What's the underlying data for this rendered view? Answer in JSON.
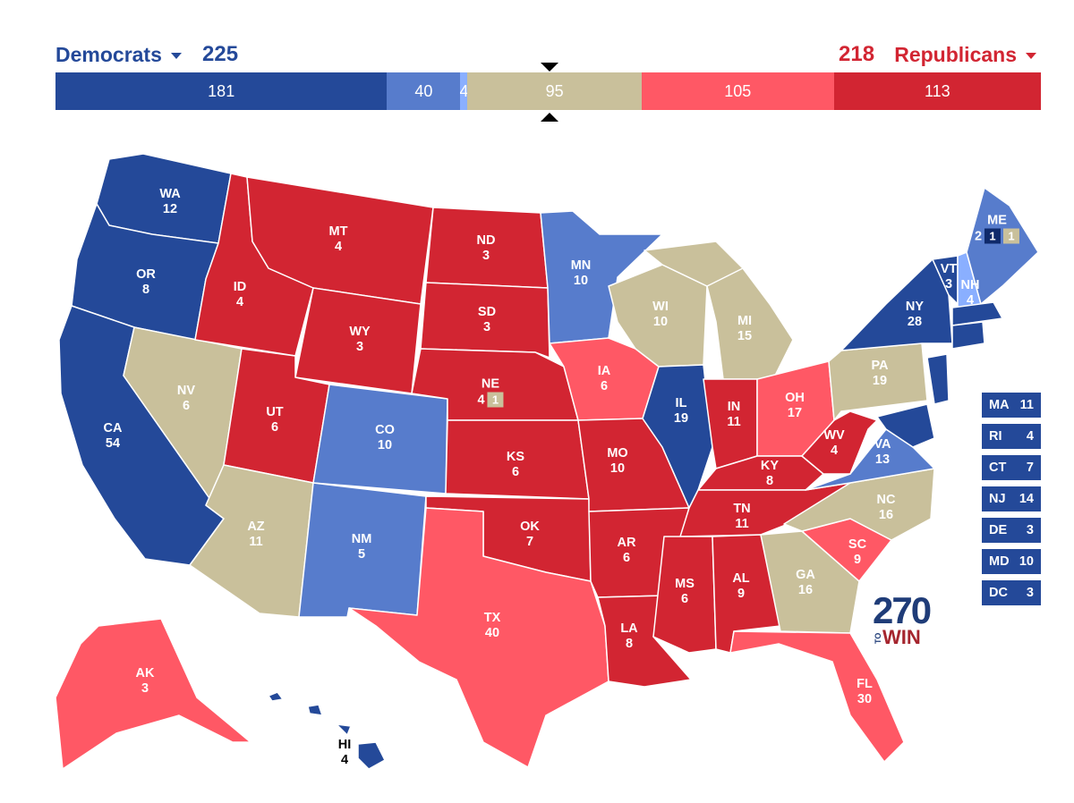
{
  "header": {
    "dem_label": "Democrats",
    "dem_total": "225",
    "rep_total": "218",
    "rep_label": "Republicans"
  },
  "bar": [
    {
      "id": "safe_dem",
      "label": "181",
      "value": 181,
      "color": "#244999"
    },
    {
      "id": "likely_dem",
      "label": "40",
      "value": 40,
      "color": "#577ccc"
    },
    {
      "id": "lean_dem",
      "label": "4",
      "value": 4,
      "color": "#8aafff"
    },
    {
      "id": "tossup",
      "label": "95",
      "value": 95,
      "color": "#c9c09b"
    },
    {
      "id": "lean_rep",
      "label": "105",
      "value": 105,
      "color": "#ff5865"
    },
    {
      "id": "likely_rep",
      "label": "113",
      "value": 113,
      "color": "#d22532"
    }
  ],
  "colors": {
    "safe_dem": "#244999",
    "likely_dem": "#577ccc",
    "lean_dem": "#8aafff",
    "tossup": "#c9c09b",
    "lean_rep": "#ff5865",
    "safe_rep": "#d22532"
  },
  "states": [
    {
      "abbr": "WA",
      "ev": "12",
      "rating": "safe_dem"
    },
    {
      "abbr": "OR",
      "ev": "8",
      "rating": "safe_dem"
    },
    {
      "abbr": "CA",
      "ev": "54",
      "rating": "safe_dem"
    },
    {
      "abbr": "NV",
      "ev": "6",
      "rating": "tossup"
    },
    {
      "abbr": "ID",
      "ev": "4",
      "rating": "safe_rep"
    },
    {
      "abbr": "MT",
      "ev": "4",
      "rating": "safe_rep"
    },
    {
      "abbr": "WY",
      "ev": "3",
      "rating": "safe_rep"
    },
    {
      "abbr": "UT",
      "ev": "6",
      "rating": "safe_rep"
    },
    {
      "abbr": "AZ",
      "ev": "11",
      "rating": "tossup"
    },
    {
      "abbr": "CO",
      "ev": "10",
      "rating": "likely_dem"
    },
    {
      "abbr": "NM",
      "ev": "5",
      "rating": "likely_dem"
    },
    {
      "abbr": "ND",
      "ev": "3",
      "rating": "safe_rep"
    },
    {
      "abbr": "SD",
      "ev": "3",
      "rating": "safe_rep"
    },
    {
      "abbr": "NE",
      "ev": "4",
      "rating": "safe_rep",
      "split": "1"
    },
    {
      "abbr": "KS",
      "ev": "6",
      "rating": "safe_rep"
    },
    {
      "abbr": "OK",
      "ev": "7",
      "rating": "safe_rep"
    },
    {
      "abbr": "TX",
      "ev": "40",
      "rating": "lean_rep"
    },
    {
      "abbr": "MN",
      "ev": "10",
      "rating": "likely_dem"
    },
    {
      "abbr": "IA",
      "ev": "6",
      "rating": "lean_rep"
    },
    {
      "abbr": "MO",
      "ev": "10",
      "rating": "safe_rep"
    },
    {
      "abbr": "AR",
      "ev": "6",
      "rating": "safe_rep"
    },
    {
      "abbr": "LA",
      "ev": "8",
      "rating": "safe_rep"
    },
    {
      "abbr": "WI",
      "ev": "10",
      "rating": "tossup"
    },
    {
      "abbr": "IL",
      "ev": "19",
      "rating": "safe_dem"
    },
    {
      "abbr": "MI",
      "ev": "15",
      "rating": "tossup"
    },
    {
      "abbr": "IN",
      "ev": "11",
      "rating": "safe_rep"
    },
    {
      "abbr": "OH",
      "ev": "17",
      "rating": "lean_rep"
    },
    {
      "abbr": "KY",
      "ev": "8",
      "rating": "safe_rep"
    },
    {
      "abbr": "TN",
      "ev": "11",
      "rating": "safe_rep"
    },
    {
      "abbr": "MS",
      "ev": "6",
      "rating": "safe_rep"
    },
    {
      "abbr": "AL",
      "ev": "9",
      "rating": "safe_rep"
    },
    {
      "abbr": "GA",
      "ev": "16",
      "rating": "tossup"
    },
    {
      "abbr": "FL",
      "ev": "30",
      "rating": "lean_rep"
    },
    {
      "abbr": "SC",
      "ev": "9",
      "rating": "lean_rep"
    },
    {
      "abbr": "NC",
      "ev": "16",
      "rating": "tossup"
    },
    {
      "abbr": "VA",
      "ev": "13",
      "rating": "likely_dem"
    },
    {
      "abbr": "WV",
      "ev": "4",
      "rating": "safe_rep"
    },
    {
      "abbr": "PA",
      "ev": "19",
      "rating": "tossup"
    },
    {
      "abbr": "NY",
      "ev": "28",
      "rating": "safe_dem"
    },
    {
      "abbr": "VT",
      "ev": "3",
      "rating": "safe_dem"
    },
    {
      "abbr": "NH",
      "ev": "4",
      "rating": "lean_dem"
    },
    {
      "abbr": "ME",
      "ev": "2",
      "rating": "likely_dem",
      "split_dem": "1",
      "split_tossup": "1"
    },
    {
      "abbr": "AK",
      "ev": "3",
      "rating": "lean_rep"
    },
    {
      "abbr": "HI",
      "ev": "4",
      "rating": "safe_dem"
    }
  ],
  "small_states": [
    {
      "abbr": "MA",
      "ev": "11"
    },
    {
      "abbr": "RI",
      "ev": "4"
    },
    {
      "abbr": "CT",
      "ev": "7"
    },
    {
      "abbr": "NJ",
      "ev": "14"
    },
    {
      "abbr": "DE",
      "ev": "3"
    },
    {
      "abbr": "MD",
      "ev": "10"
    },
    {
      "abbr": "DC",
      "ev": "3"
    }
  ],
  "logo": {
    "number": "270",
    "to": "TO",
    "win": "WIN"
  }
}
